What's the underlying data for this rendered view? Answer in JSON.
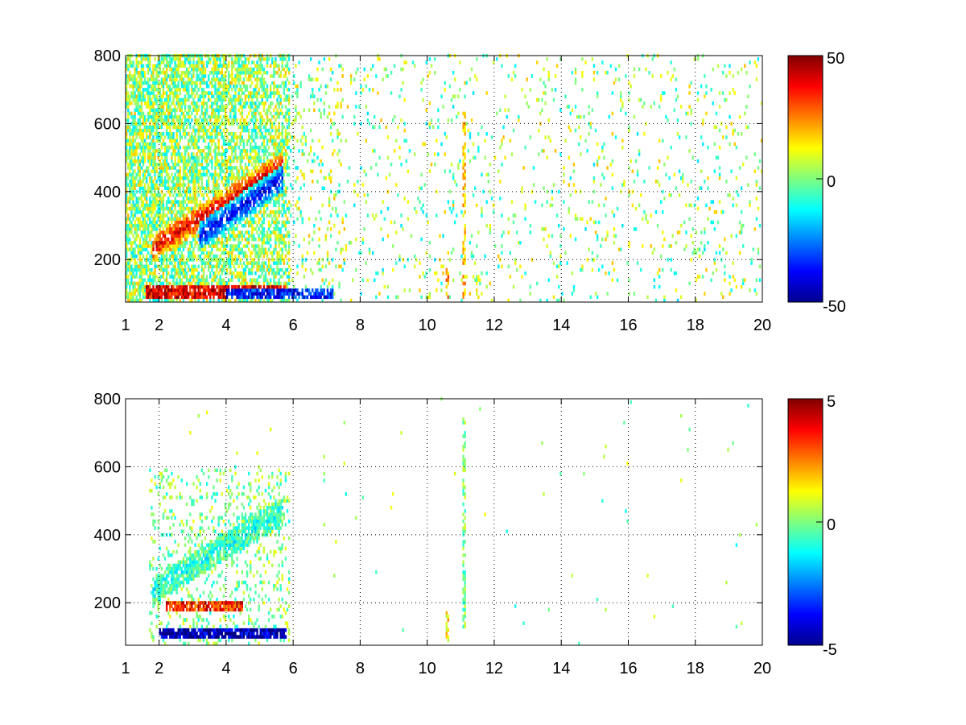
{
  "chart_data": [
    {
      "type": "heatmap",
      "title": "",
      "xlabel": "",
      "ylabel": "",
      "xlim": [
        1,
        20
      ],
      "ylim": [
        75,
        800
      ],
      "grid": true,
      "x_ticks": [
        1,
        2,
        4,
        6,
        8,
        10,
        12,
        14,
        16,
        18,
        20
      ],
      "x_tick_labels": [
        "1",
        "2",
        "4",
        "6",
        "8",
        "10",
        "12",
        "14",
        "16",
        "18",
        "20"
      ],
      "y_ticks": [
        200,
        400,
        600,
        800
      ],
      "y_tick_labels": [
        "200",
        "400",
        "600",
        "800"
      ],
      "colorbar": {
        "range": [
          -50,
          50
        ],
        "ticks": [
          50,
          0,
          -50
        ],
        "tick_labels": [
          "50",
          "0",
          "-50"
        ],
        "colormap": "jet"
      },
      "features": [
        {
          "feature": "rising ridge",
          "sign": "positive",
          "from": [
            1.8,
            235
          ],
          "to": [
            5.7,
            480
          ],
          "value": 40
        },
        {
          "feature": "rising ridge",
          "sign": "negative",
          "from": [
            3.2,
            270
          ],
          "to": [
            5.7,
            440
          ],
          "value": -40
        },
        {
          "feature": "horizontal band",
          "sign": "positive",
          "x_range": [
            1.6,
            5.8
          ],
          "y": 105,
          "value": 40
        },
        {
          "feature": "horizontal band",
          "sign": "negative",
          "x_range": [
            4.0,
            7.2
          ],
          "y": 100,
          "value": -35
        },
        {
          "feature": "vertical stripe",
          "x": 11.1,
          "y_range": [
            80,
            650
          ],
          "value": 18
        },
        {
          "feature": "vertical stripe",
          "x": 10.6,
          "y_range": [
            80,
            170
          ],
          "value": 25
        }
      ]
    },
    {
      "type": "heatmap",
      "title": "",
      "xlabel": "",
      "ylabel": "",
      "xlim": [
        1,
        20
      ],
      "ylim": [
        75,
        800
      ],
      "grid": true,
      "x_ticks": [
        1,
        2,
        4,
        6,
        8,
        10,
        12,
        14,
        16,
        18,
        20
      ],
      "x_tick_labels": [
        "1",
        "2",
        "4",
        "6",
        "8",
        "10",
        "12",
        "14",
        "16",
        "18",
        "20"
      ],
      "y_ticks": [
        200,
        400,
        600,
        800
      ],
      "y_tick_labels": [
        "200",
        "400",
        "600",
        "800"
      ],
      "colorbar": {
        "range": [
          -5,
          5
        ],
        "ticks": [
          5,
          0,
          -5
        ],
        "tick_labels": [
          "5",
          "0",
          "-5"
        ],
        "colormap": "jet"
      },
      "features": [
        {
          "feature": "rising ridge",
          "sign": "mixed",
          "from": [
            1.8,
            235
          ],
          "to": [
            5.7,
            470
          ],
          "value": -1
        },
        {
          "feature": "horizontal band",
          "sign": "negative",
          "x_range": [
            2.0,
            5.8
          ],
          "y": 110,
          "value": -4.5
        },
        {
          "feature": "horizontal band",
          "sign": "positive",
          "x_range": [
            2.2,
            4.5
          ],
          "y": 190,
          "value": 3.5
        },
        {
          "feature": "vertical stripe",
          "x": 11.1,
          "y_range": [
            120,
            740
          ],
          "value": 0
        },
        {
          "feature": "vertical stripe",
          "x": 10.6,
          "y_range": [
            90,
            170
          ],
          "value": 1.5
        }
      ]
    }
  ]
}
